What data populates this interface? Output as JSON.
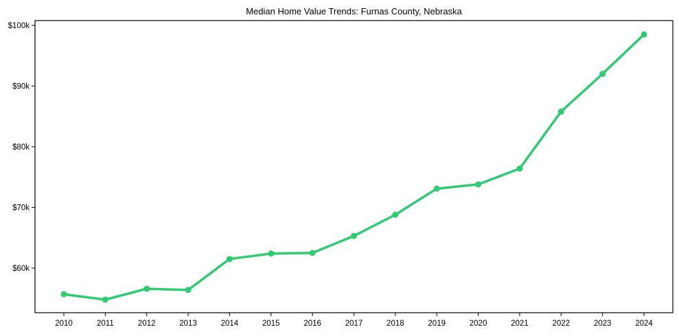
{
  "chart_data": {
    "type": "line",
    "title": "Median Home Value Trends: Furnas County, Nebraska",
    "xlabel": "",
    "ylabel": "",
    "x": [
      "2010",
      "2011",
      "2012",
      "2013",
      "2014",
      "2015",
      "2016",
      "2017",
      "2018",
      "2019",
      "2020",
      "2021",
      "2022",
      "2023",
      "2024"
    ],
    "series": [
      {
        "name": "Median Home Value",
        "color": "#2ecc71",
        "values": [
          55700,
          54800,
          56600,
          56400,
          61500,
          62400,
          62500,
          65300,
          68800,
          73100,
          73800,
          76400,
          85800,
          92000,
          98500
        ]
      }
    ],
    "yticks": [
      60000,
      70000,
      80000,
      90000,
      100000
    ],
    "ytick_labels": [
      "$60k",
      "$70k",
      "$80k",
      "$90k",
      "$100k"
    ],
    "ylim": [
      52900,
      100800
    ],
    "grid": false,
    "legend": null
  }
}
